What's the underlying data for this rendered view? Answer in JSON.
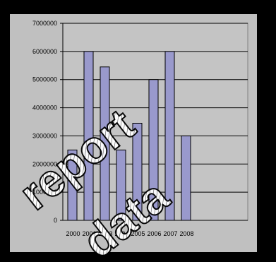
{
  "chart_data": {
    "type": "bar",
    "title": "",
    "xlabel": "",
    "ylabel": "",
    "categories": [
      "2000",
      "2001",
      "2003",
      "2004",
      "2005",
      "2006",
      "2007",
      "2008"
    ],
    "values": [
      2500000,
      6000000,
      5450000,
      2500000,
      3450000,
      5000000,
      6000000,
      3000000
    ],
    "ylim": [
      0,
      7000000
    ],
    "yticks": [
      "0",
      "1000000",
      "2000000",
      "3000000",
      "4000000",
      "5000000",
      "6000000",
      "7000000"
    ],
    "grid": true,
    "legend": "none",
    "colors": {
      "background": "#000000",
      "panel": "#c0c0c0",
      "plot": "#c4c4c4",
      "bar_fill": "#9999cc",
      "bar_stroke": "#000000",
      "axis": "#000000",
      "watermark_fill": "#ffffff",
      "watermark_hatch": "#333333"
    }
  },
  "watermark": {
    "line1": "report",
    "line2": "data"
  }
}
